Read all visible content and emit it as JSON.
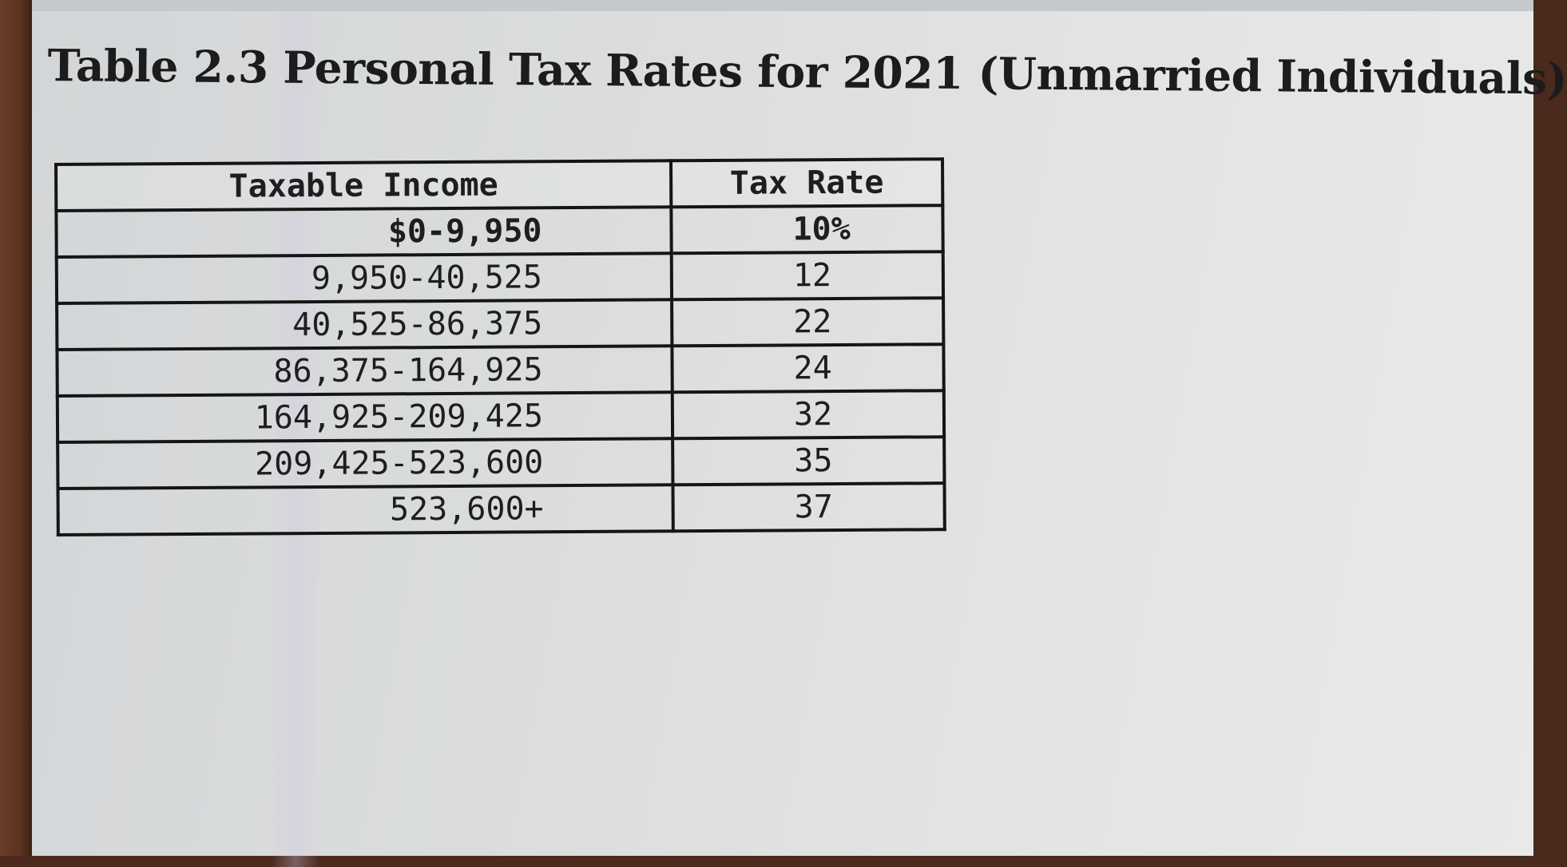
{
  "title": "Table 2.3 Personal Tax Rates for 2021 (Unmarried Individuals)",
  "table": {
    "headers": [
      "Taxable Income",
      "Tax Rate"
    ],
    "rows": [
      [
        "$0-9,950",
        "10%"
      ],
      [
        "9,950-40,525",
        "12"
      ],
      [
        "40,525-86,375",
        "22"
      ],
      [
        "86,375-164,925",
        "24"
      ],
      [
        "164,925-209,425",
        "32"
      ],
      [
        "209,425-523,600",
        "35"
      ],
      [
        "523,600+",
        "37"
      ]
    ]
  }
}
